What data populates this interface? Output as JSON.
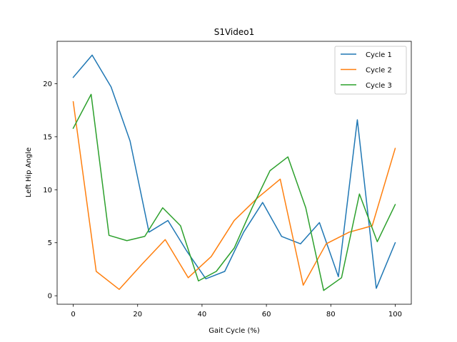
{
  "chart_data": {
    "type": "line",
    "title": "S1Video1",
    "xlabel": "Gait Cycle (%)",
    "ylabel": "Left Hip Angle",
    "xlim": [
      -5,
      105
    ],
    "ylim": [
      -0.8,
      24.0
    ],
    "xticks": [
      0,
      20,
      40,
      60,
      80,
      100
    ],
    "yticks": [
      0,
      5,
      10,
      15,
      20
    ],
    "grid": false,
    "legend_position": "top-right",
    "series": [
      {
        "name": "Cycle 1",
        "color": "#1f77b4",
        "x": [
          0,
          5.88,
          11.76,
          17.65,
          23.53,
          29.41,
          35.29,
          41.18,
          47.06,
          52.94,
          58.82,
          64.71,
          70.59,
          76.47,
          82.35,
          88.24,
          94.12,
          100
        ],
        "y": [
          20.6,
          22.7,
          19.7,
          14.6,
          6.0,
          7.1,
          4.2,
          1.6,
          2.3,
          6.0,
          8.8,
          5.6,
          4.9,
          6.9,
          1.8,
          16.6,
          0.7,
          5.0
        ]
      },
      {
        "name": "Cycle 2",
        "color": "#ff7f0e",
        "x": [
          0,
          7.14,
          14.29,
          21.43,
          28.57,
          35.71,
          42.86,
          50.0,
          57.14,
          64.29,
          71.43,
          78.57,
          85.71,
          92.86,
          100
        ],
        "y": [
          18.3,
          2.3,
          0.6,
          3.0,
          5.3,
          1.7,
          3.7,
          7.1,
          9.2,
          11.0,
          1.0,
          4.9,
          6.0,
          6.6,
          13.9
        ]
      },
      {
        "name": "Cycle 3",
        "color": "#2ca02c",
        "x": [
          0,
          5.56,
          11.11,
          16.67,
          22.22,
          27.78,
          33.33,
          38.89,
          44.44,
          50.0,
          55.56,
          61.11,
          66.67,
          72.22,
          77.78,
          83.33,
          88.89,
          94.44,
          100
        ],
        "y": [
          15.8,
          19.0,
          5.7,
          5.2,
          5.6,
          8.3,
          6.6,
          1.4,
          2.3,
          4.5,
          8.3,
          11.8,
          13.1,
          8.3,
          0.5,
          1.7,
          9.6,
          5.1,
          8.6
        ]
      }
    ]
  }
}
